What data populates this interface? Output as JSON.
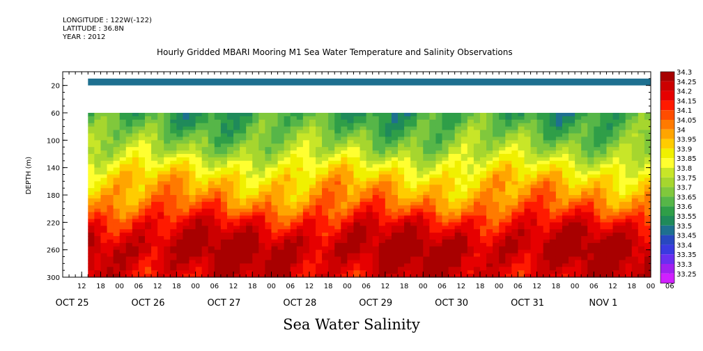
{
  "header": {
    "longitude": "LONGITUDE : 122W(-122)",
    "latitude": "LATITUDE : 36.8N",
    "year": "YEAR : 2012"
  },
  "title": "Hourly Gridded MBARI Mooring M1 Sea Water Temperature and Salinity Observations",
  "bottom_label": "Sea Water Salinity",
  "chart_data": {
    "type": "heatmap",
    "title": "Hourly Gridded MBARI Mooring M1 Sea Water Temperature and Salinity Observations",
    "variable": "Sea Water Salinity",
    "ylabel": "DEPTH (m)",
    "ylim": [
      300,
      0
    ],
    "y_ticks": [
      20,
      60,
      100,
      140,
      180,
      220,
      260,
      300
    ],
    "x_range_hours": [
      0,
      186
    ],
    "x_hour_ticks": [
      "12",
      "18",
      "00",
      "06",
      "12",
      "18",
      "00",
      "06",
      "12",
      "18",
      "00",
      "06",
      "12",
      "18",
      "00",
      "06",
      "12",
      "18",
      "00",
      "06",
      "12",
      "18",
      "00",
      "06",
      "12",
      "18",
      "00",
      "06",
      "12",
      "18",
      "00",
      "06"
    ],
    "x_day_labels": [
      {
        "label": "OCT 25",
        "hour": 3
      },
      {
        "label": "OCT 26",
        "hour": 27
      },
      {
        "label": "OCT 27",
        "hour": 51
      },
      {
        "label": "OCT 28",
        "hour": 75
      },
      {
        "label": "OCT 29",
        "hour": 99
      },
      {
        "label": "OCT 30",
        "hour": 123
      },
      {
        "label": "OCT 31",
        "hour": 147
      },
      {
        "label": "NOV 1",
        "hour": 171
      }
    ],
    "data_start_hour": 8,
    "surface_band": {
      "depth_range": [
        10,
        20
      ],
      "value": 33.45
    },
    "deep_data_top_depth": 60,
    "colorbar": {
      "levels": [
        34.3,
        34.25,
        34.2,
        34.15,
        34.1,
        34.05,
        34,
        33.95,
        33.9,
        33.85,
        33.8,
        33.75,
        33.7,
        33.65,
        33.6,
        33.55,
        33.5,
        33.45,
        33.4,
        33.35,
        33.3,
        33.25
      ],
      "labels": [
        "34.3",
        "34.25",
        "34.2",
        "34.15",
        "34.1",
        "34.05",
        "34",
        "33.95",
        "33.9",
        "33.85",
        "33.8",
        "33.75",
        "33.7",
        "33.65",
        "33.6",
        "33.55",
        "33.5",
        "33.45",
        "33.4",
        "33.35",
        "33.3",
        "33.25"
      ],
      "colors": [
        "#a80000",
        "#cc0000",
        "#e60000",
        "#ff1a00",
        "#ff4d00",
        "#ff7a00",
        "#ffa500",
        "#ffcc00",
        "#f0f000",
        "#ffff30",
        "#c8e628",
        "#a6d62e",
        "#80c83c",
        "#56b648",
        "#2f9e48",
        "#1f8a5a",
        "#1e7090",
        "#2848c0",
        "#3a3ae0",
        "#6a2ef0",
        "#a020f0",
        "#d020ff"
      ]
    },
    "depth_profile": [
      {
        "depth": 60,
        "value": 33.58
      },
      {
        "depth": 80,
        "value": 33.63
      },
      {
        "depth": 100,
        "value": 33.68
      },
      {
        "depth": 120,
        "value": 33.75
      },
      {
        "depth": 140,
        "value": 33.85
      },
      {
        "depth": 160,
        "value": 33.93
      },
      {
        "depth": 180,
        "value": 33.98
      },
      {
        "depth": 200,
        "value": 34.05
      },
      {
        "depth": 220,
        "value": 34.15
      },
      {
        "depth": 240,
        "value": 34.22
      },
      {
        "depth": 260,
        "value": 34.27
      },
      {
        "depth": 280,
        "value": 34.23
      },
      {
        "depth": 300,
        "value": 34.2
      }
    ]
  }
}
